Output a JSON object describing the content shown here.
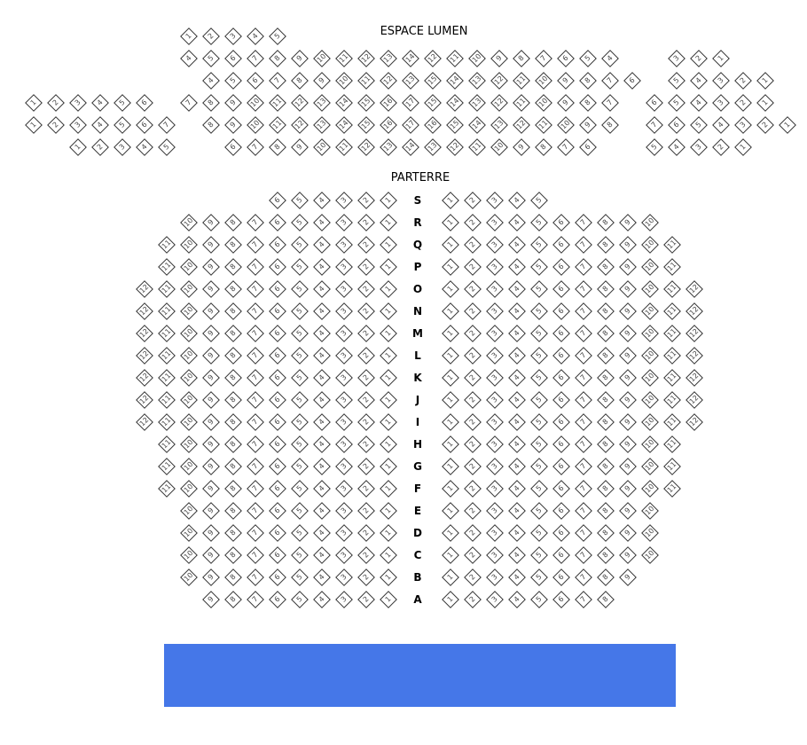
{
  "balcony": {
    "title": "ESPACE LUMEN",
    "rows": [
      {
        "segments": [
          [
            1,
            2,
            3,
            4,
            5
          ]
        ]
      },
      {
        "segments": [
          [
            4,
            5,
            6,
            7,
            8,
            9,
            10,
            11,
            12,
            13,
            14,
            12,
            11,
            10,
            9,
            8,
            7,
            6,
            5,
            4
          ],
          [
            3,
            2,
            1
          ]
        ]
      },
      {
        "segments": [
          [
            4,
            5,
            6,
            7,
            8,
            9,
            10,
            11,
            12,
            13,
            15,
            14,
            13,
            12,
            11,
            10,
            9,
            8,
            7,
            6
          ],
          [
            5,
            4,
            3,
            2,
            1
          ]
        ]
      },
      {
        "segments": [
          [
            1,
            2,
            3,
            4,
            5,
            6
          ],
          [
            7,
            8,
            9,
            10,
            11,
            12,
            13,
            14,
            15,
            16,
            17,
            15,
            14,
            13,
            12,
            11,
            10,
            9,
            8,
            7
          ],
          [
            6,
            5,
            4,
            3,
            2,
            1
          ]
        ]
      },
      {
        "segments": [
          [
            1,
            2,
            3,
            4,
            5,
            6,
            7
          ],
          [
            8,
            9,
            10,
            11,
            12,
            13,
            14,
            15,
            16,
            17,
            16,
            15,
            14,
            13,
            12,
            11,
            10,
            9,
            8
          ],
          [
            7,
            6,
            5,
            4,
            3,
            2,
            1
          ]
        ]
      },
      {
        "segments": [
          [
            1,
            2,
            3,
            4,
            5
          ],
          [
            6,
            7,
            8,
            9,
            10,
            11,
            12,
            13,
            14,
            13,
            12,
            11,
            10,
            9,
            8,
            7,
            6
          ],
          [
            5,
            4,
            3,
            2,
            1
          ]
        ]
      }
    ]
  },
  "parterre": {
    "title": "PARTERRE",
    "rows": [
      {
        "letter": "S",
        "left": [
          1,
          2,
          3,
          4,
          5,
          6
        ],
        "right": [
          1,
          2,
          3,
          4,
          5
        ]
      },
      {
        "letter": "R",
        "left": [
          1,
          2,
          3,
          4,
          5,
          6,
          7,
          8,
          9,
          10
        ],
        "right": [
          1,
          2,
          3,
          4,
          5,
          6,
          7,
          8,
          9,
          10
        ]
      },
      {
        "letter": "Q",
        "left": [
          1,
          2,
          3,
          4,
          5,
          6,
          7,
          8,
          9,
          10,
          11
        ],
        "right": [
          1,
          2,
          3,
          4,
          5,
          6,
          7,
          8,
          9,
          10,
          11
        ]
      },
      {
        "letter": "P",
        "left": [
          1,
          2,
          3,
          4,
          5,
          6,
          7,
          8,
          9,
          10,
          11
        ],
        "right": [
          1,
          2,
          3,
          4,
          5,
          6,
          7,
          8,
          9,
          10,
          11
        ]
      },
      {
        "letter": "O",
        "left": [
          1,
          2,
          3,
          4,
          5,
          6,
          7,
          8,
          9,
          10,
          11,
          12
        ],
        "right": [
          1,
          2,
          3,
          4,
          5,
          6,
          7,
          8,
          9,
          10,
          11,
          12
        ]
      },
      {
        "letter": "N",
        "left": [
          1,
          2,
          3,
          4,
          5,
          6,
          7,
          8,
          9,
          10,
          11,
          12
        ],
        "right": [
          1,
          2,
          3,
          4,
          5,
          6,
          7,
          8,
          9,
          10,
          11,
          12
        ]
      },
      {
        "letter": "M",
        "left": [
          1,
          2,
          3,
          4,
          5,
          6,
          7,
          8,
          9,
          10,
          11,
          12
        ],
        "right": [
          1,
          2,
          3,
          4,
          5,
          6,
          7,
          8,
          9,
          10,
          11,
          12
        ]
      },
      {
        "letter": "L",
        "left": [
          1,
          2,
          3,
          4,
          5,
          6,
          7,
          8,
          9,
          10,
          11,
          12
        ],
        "right": [
          1,
          2,
          3,
          4,
          5,
          6,
          7,
          8,
          9,
          10,
          11,
          12
        ]
      },
      {
        "letter": "K",
        "left": [
          1,
          2,
          3,
          4,
          5,
          6,
          7,
          8,
          9,
          10,
          11,
          12
        ],
        "right": [
          1,
          2,
          3,
          4,
          5,
          6,
          7,
          8,
          9,
          10,
          11,
          12
        ]
      },
      {
        "letter": "J",
        "left": [
          1,
          2,
          3,
          4,
          5,
          6,
          7,
          8,
          9,
          10,
          11,
          12
        ],
        "right": [
          1,
          2,
          3,
          4,
          5,
          6,
          7,
          8,
          9,
          10,
          11,
          12
        ]
      },
      {
        "letter": "I",
        "left": [
          1,
          2,
          3,
          4,
          5,
          6,
          7,
          8,
          9,
          10,
          11,
          12
        ],
        "right": [
          1,
          2,
          3,
          4,
          5,
          6,
          7,
          8,
          9,
          10,
          11,
          12
        ]
      },
      {
        "letter": "H",
        "left": [
          1,
          2,
          3,
          4,
          5,
          6,
          7,
          8,
          9,
          10,
          11
        ],
        "right": [
          1,
          2,
          3,
          4,
          5,
          6,
          7,
          8,
          9,
          10,
          11
        ]
      },
      {
        "letter": "G",
        "left": [
          1,
          2,
          3,
          4,
          5,
          6,
          7,
          8,
          9,
          10,
          11
        ],
        "right": [
          1,
          2,
          3,
          4,
          5,
          6,
          7,
          8,
          9,
          10,
          11
        ]
      },
      {
        "letter": "F",
        "left": [
          1,
          2,
          3,
          4,
          5,
          6,
          7,
          8,
          9,
          10,
          11
        ],
        "right": [
          1,
          2,
          3,
          4,
          5,
          6,
          7,
          8,
          9,
          10,
          11
        ]
      },
      {
        "letter": "E",
        "left": [
          1,
          2,
          3,
          4,
          5,
          6,
          7,
          8,
          9,
          10
        ],
        "right": [
          1,
          2,
          3,
          4,
          5,
          6,
          7,
          8,
          9,
          10
        ]
      },
      {
        "letter": "D",
        "left": [
          1,
          2,
          3,
          4,
          5,
          6,
          7,
          8,
          9,
          10
        ],
        "right": [
          1,
          2,
          3,
          4,
          5,
          6,
          7,
          8,
          9,
          10
        ]
      },
      {
        "letter": "C",
        "left": [
          1,
          2,
          3,
          4,
          5,
          6,
          7,
          8,
          9,
          10
        ],
        "right": [
          1,
          2,
          3,
          4,
          5,
          6,
          7,
          8,
          9,
          10
        ]
      },
      {
        "letter": "B",
        "left": [
          1,
          2,
          3,
          4,
          5,
          6,
          7,
          8,
          9,
          10
        ],
        "right": [
          1,
          2,
          3,
          4,
          5,
          6,
          7,
          8,
          9
        ]
      },
      {
        "letter": "A",
        "left": [
          1,
          2,
          3,
          4,
          5,
          6,
          7,
          8,
          9
        ],
        "right": [
          1,
          2,
          3,
          4,
          5,
          6,
          7,
          8
        ]
      }
    ]
  },
  "colors": {
    "stage": "#4577e8",
    "seat_border": "#333333"
  }
}
